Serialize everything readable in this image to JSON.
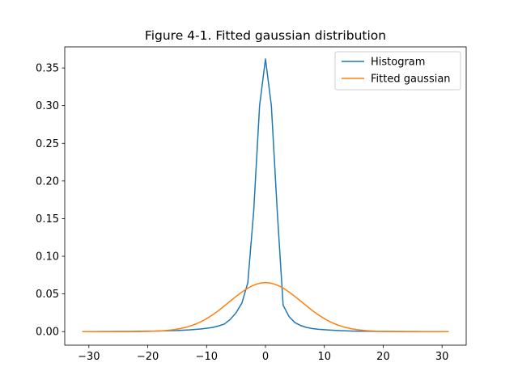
{
  "chart_data": {
    "type": "line",
    "title": "Figure 4-1. Fitted gaussian distribution",
    "xlabel": "",
    "ylabel": "",
    "xlim": [
      -34.1,
      34.1
    ],
    "ylim": [
      -0.018,
      0.378
    ],
    "xticks": [
      -30,
      -20,
      -10,
      0,
      10,
      20,
      30
    ],
    "xtick_labels": [
      "−30",
      "−20",
      "−10",
      "0",
      "10",
      "20",
      "30"
    ],
    "yticks": [
      0.0,
      0.05,
      0.1,
      0.15,
      0.2,
      0.25,
      0.3,
      0.35
    ],
    "ytick_labels": [
      "0.00",
      "0.05",
      "0.10",
      "0.15",
      "0.20",
      "0.25",
      "0.30",
      "0.35"
    ],
    "grid": false,
    "legend_position": "top-right",
    "series": [
      {
        "name": "Histogram",
        "color": "#1f77b4",
        "x": [
          -31,
          -29,
          -27,
          -25,
          -23,
          -21,
          -19,
          -17,
          -15,
          -13,
          -11,
          -9,
          -8,
          -7,
          -6,
          -5,
          -4,
          -3,
          -2,
          -1,
          0,
          1,
          2,
          3,
          4,
          5,
          6,
          7,
          8,
          9,
          11,
          13,
          15,
          17,
          19,
          21,
          23,
          25,
          27,
          29,
          31
        ],
        "y": [
          0.0,
          0.0,
          0.0001,
          0.0002,
          0.0003,
          0.0005,
          0.0007,
          0.001,
          0.0014,
          0.0022,
          0.0035,
          0.0055,
          0.0075,
          0.01,
          0.016,
          0.025,
          0.038,
          0.065,
          0.16,
          0.3,
          0.362,
          0.3,
          0.16,
          0.035,
          0.02,
          0.012,
          0.008,
          0.0055,
          0.004,
          0.003,
          0.002,
          0.0012,
          0.0007,
          0.0005,
          0.0003,
          0.0002,
          0.0001,
          0.0001,
          0.0,
          0.0,
          0.0
        ]
      },
      {
        "name": "Fitted gaussian",
        "color": "#ff7f0e",
        "mean": 0,
        "sigma": 6.14,
        "x_range": [
          -31,
          31
        ]
      }
    ]
  }
}
